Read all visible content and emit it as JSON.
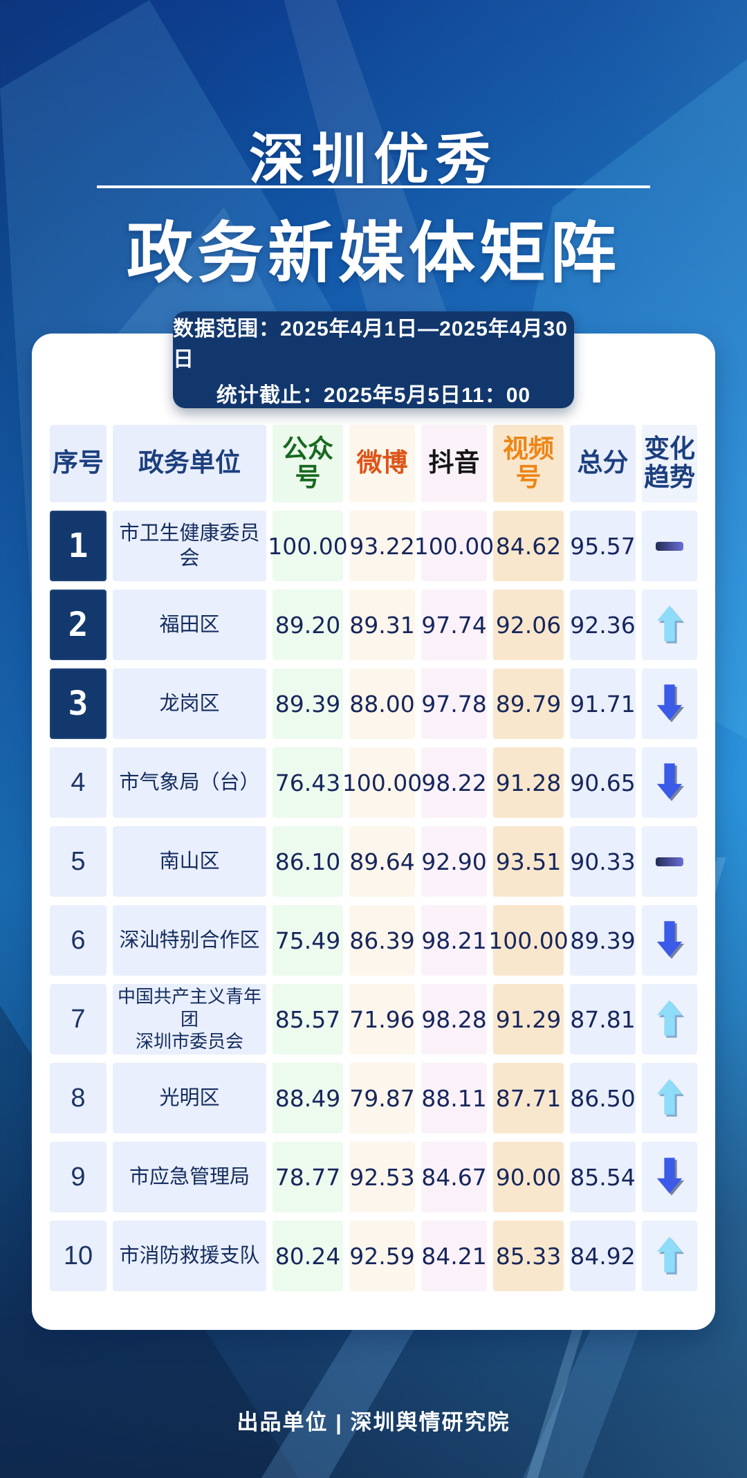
{
  "title": {
    "line1": "深圳优秀",
    "line2": "政务新媒体矩阵"
  },
  "info_box": {
    "line1": "数据范围：2025年4月1日—2025年4月30日",
    "line2": "统计截止：2025年5月5日11：00"
  },
  "table": {
    "headers": [
      {
        "label": "序号",
        "theme": "blue"
      },
      {
        "label": "政务单位",
        "theme": "blue"
      },
      {
        "label": "公众号",
        "theme": "green"
      },
      {
        "label": "微博",
        "theme": "wb"
      },
      {
        "label": "抖音",
        "theme": "dy"
      },
      {
        "label": "视频号",
        "theme": "sph"
      },
      {
        "label": "总分",
        "theme": "blue"
      },
      {
        "label": "变化趋势",
        "theme": "trend"
      }
    ],
    "rows": [
      {
        "rank": "1",
        "top3": true,
        "unit": "市卫生健康委员会",
        "gzh": "100.00",
        "wb": "93.22",
        "dy": "100.00",
        "sph": "84.62",
        "total": "95.57",
        "trend": "flat"
      },
      {
        "rank": "2",
        "top3": true,
        "unit": "福田区",
        "gzh": "89.20",
        "wb": "89.31",
        "dy": "97.74",
        "sph": "92.06",
        "total": "92.36",
        "trend": "up"
      },
      {
        "rank": "3",
        "top3": true,
        "unit": "龙岗区",
        "gzh": "89.39",
        "wb": "88.00",
        "dy": "97.78",
        "sph": "89.79",
        "total": "91.71",
        "trend": "down"
      },
      {
        "rank": "4",
        "top3": false,
        "unit": "市气象局（台）",
        "gzh": "76.43",
        "wb": "100.00",
        "dy": "98.22",
        "sph": "91.28",
        "total": "90.65",
        "trend": "down"
      },
      {
        "rank": "5",
        "top3": false,
        "unit": "南山区",
        "gzh": "86.10",
        "wb": "89.64",
        "dy": "92.90",
        "sph": "93.51",
        "total": "90.33",
        "trend": "flat"
      },
      {
        "rank": "6",
        "top3": false,
        "unit": "深汕特别合作区",
        "gzh": "75.49",
        "wb": "86.39",
        "dy": "98.21",
        "sph": "100.00",
        "total": "89.39",
        "trend": "down"
      },
      {
        "rank": "7",
        "top3": false,
        "unit": "中国共产主义青年团\n深圳市委员会",
        "gzh": "85.57",
        "wb": "71.96",
        "dy": "98.28",
        "sph": "91.29",
        "total": "87.81",
        "trend": "up"
      },
      {
        "rank": "8",
        "top3": false,
        "unit": "光明区",
        "gzh": "88.49",
        "wb": "79.87",
        "dy": "88.11",
        "sph": "87.71",
        "total": "86.50",
        "trend": "up"
      },
      {
        "rank": "9",
        "top3": false,
        "unit": "市应急管理局",
        "gzh": "78.77",
        "wb": "92.53",
        "dy": "84.67",
        "sph": "90.00",
        "total": "85.54",
        "trend": "down"
      },
      {
        "rank": "10",
        "top3": false,
        "unit": "市消防救援支队",
        "gzh": "80.24",
        "wb": "92.59",
        "dy": "84.21",
        "sph": "85.33",
        "total": "84.92",
        "trend": "up"
      }
    ]
  },
  "footer": {
    "text": "出品单位 | 深圳舆情研究院"
  },
  "colors": {
    "accent_navy": "#12376d",
    "badge_navy": "#12386e",
    "header_blue_text": "#1c3f7e",
    "gzh_green": "#17691f",
    "wb_orange": "#dd5417",
    "sph_orange": "#ee8516",
    "number_navy": "#16265c",
    "up_arrow": "#8edcf8",
    "down_arrow": "#3c5ae8"
  },
  "chart_data": {
    "type": "table",
    "title": "深圳优秀政务新媒体矩阵",
    "columns": [
      "序号",
      "政务单位",
      "公众号",
      "微博",
      "抖音",
      "视频号",
      "总分",
      "变化趋势"
    ],
    "rows": [
      [
        1,
        "市卫生健康委员会",
        100.0,
        93.22,
        100.0,
        84.62,
        95.57,
        "flat"
      ],
      [
        2,
        "福田区",
        89.2,
        89.31,
        97.74,
        92.06,
        92.36,
        "up"
      ],
      [
        3,
        "龙岗区",
        89.39,
        88.0,
        97.78,
        89.79,
        91.71,
        "down"
      ],
      [
        4,
        "市气象局（台）",
        76.43,
        100.0,
        98.22,
        91.28,
        90.65,
        "down"
      ],
      [
        5,
        "南山区",
        86.1,
        89.64,
        92.9,
        93.51,
        90.33,
        "flat"
      ],
      [
        6,
        "深汕特别合作区",
        75.49,
        86.39,
        98.21,
        100.0,
        89.39,
        "down"
      ],
      [
        7,
        "中国共产主义青年团深圳市委员会",
        85.57,
        71.96,
        98.28,
        91.29,
        87.81,
        "up"
      ],
      [
        8,
        "光明区",
        88.49,
        79.87,
        88.11,
        87.71,
        86.5,
        "up"
      ],
      [
        9,
        "市应急管理局",
        78.77,
        92.53,
        84.67,
        90.0,
        85.54,
        "down"
      ],
      [
        10,
        "市消防救援支队",
        80.24,
        92.59,
        84.21,
        85.33,
        84.92,
        "up"
      ]
    ],
    "notes": [
      "数据范围：2025年4月1日—2025年4月30日",
      "统计截止：2025年5月5日11：00"
    ]
  }
}
